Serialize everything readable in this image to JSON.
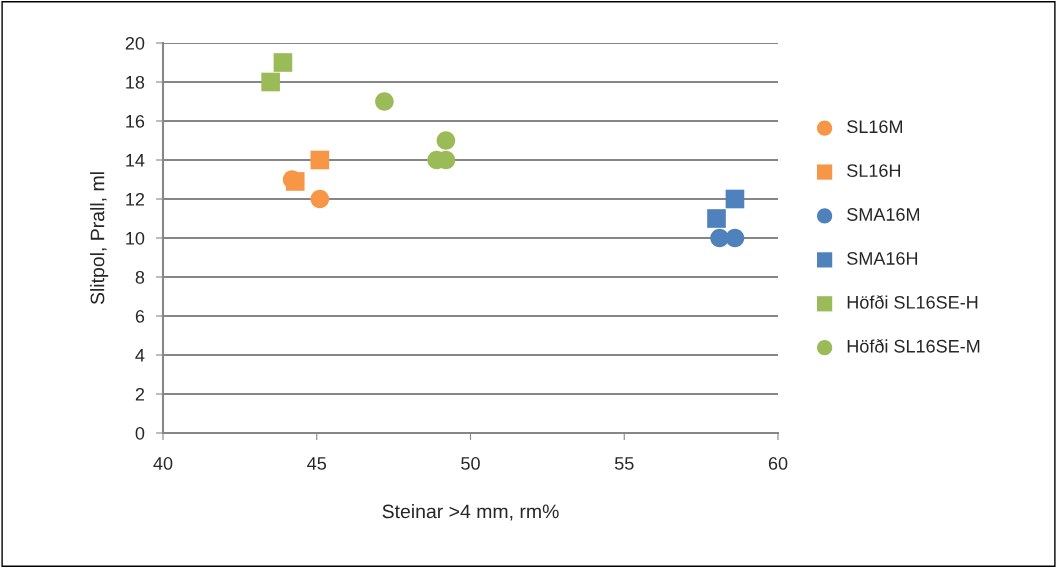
{
  "chart_data": {
    "type": "scatter",
    "xlabel": "Steinar >4 mm, rm%",
    "ylabel": "Slitpol, Prall, ml",
    "xlim": [
      40,
      60
    ],
    "xticks": [
      40,
      45,
      50,
      55,
      60
    ],
    "ylim": [
      0,
      20
    ],
    "yticks": [
      0,
      2,
      4,
      6,
      8,
      10,
      12,
      14,
      16,
      18,
      20
    ],
    "grid": "y",
    "legend": "right",
    "series": [
      {
        "name": "SL16M",
        "color": "#f79646",
        "marker": "circle",
        "x": [
          44.2,
          45.1
        ],
        "values": [
          13,
          12
        ]
      },
      {
        "name": "SL16H",
        "color": "#f79646",
        "marker": "square",
        "x": [
          44.3,
          45.1
        ],
        "values": [
          12.9,
          14
        ]
      },
      {
        "name": "SMA16M",
        "color": "#4f81bd",
        "marker": "circle",
        "x": [
          58.1,
          58.6
        ],
        "values": [
          10,
          10
        ]
      },
      {
        "name": "SMA16H",
        "color": "#4f81bd",
        "marker": "square",
        "x": [
          58.0,
          58.6
        ],
        "values": [
          11,
          12
        ]
      },
      {
        "name": "Höfði SL16SE-H",
        "color": "#9bbb59",
        "marker": "square",
        "x": [
          43.5,
          43.9
        ],
        "values": [
          18,
          19
        ]
      },
      {
        "name": "Höfði SL16SE-M",
        "color": "#9bbb59",
        "marker": "circle",
        "x": [
          47.2,
          49.2,
          48.9,
          49.2
        ],
        "values": [
          17,
          15,
          14,
          14
        ]
      }
    ]
  }
}
